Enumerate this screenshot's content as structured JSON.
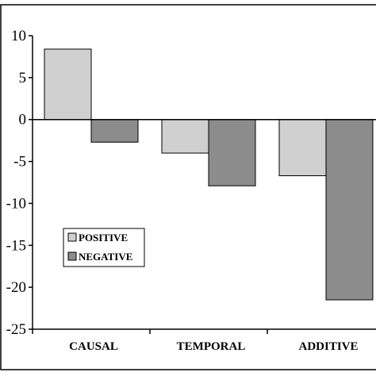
{
  "chart_data": {
    "type": "bar",
    "categories": [
      "CAUSAL",
      "TEMPORAL",
      "ADDITIVE"
    ],
    "series": [
      {
        "name": "POSITIVE",
        "values": [
          8.4,
          -4.0,
          -6.7
        ],
        "color": "#d0d0d0"
      },
      {
        "name": "NEGATIVE",
        "values": [
          -2.7,
          -7.9,
          -21.5
        ],
        "color": "#8c8c8c"
      }
    ],
    "yticks": [
      "10",
      "5",
      "0",
      "-5",
      "-10",
      "-15",
      "-20",
      "-25"
    ],
    "ylim": [
      -25,
      10
    ],
    "grid": false,
    "legend_placement": "lower-left"
  }
}
